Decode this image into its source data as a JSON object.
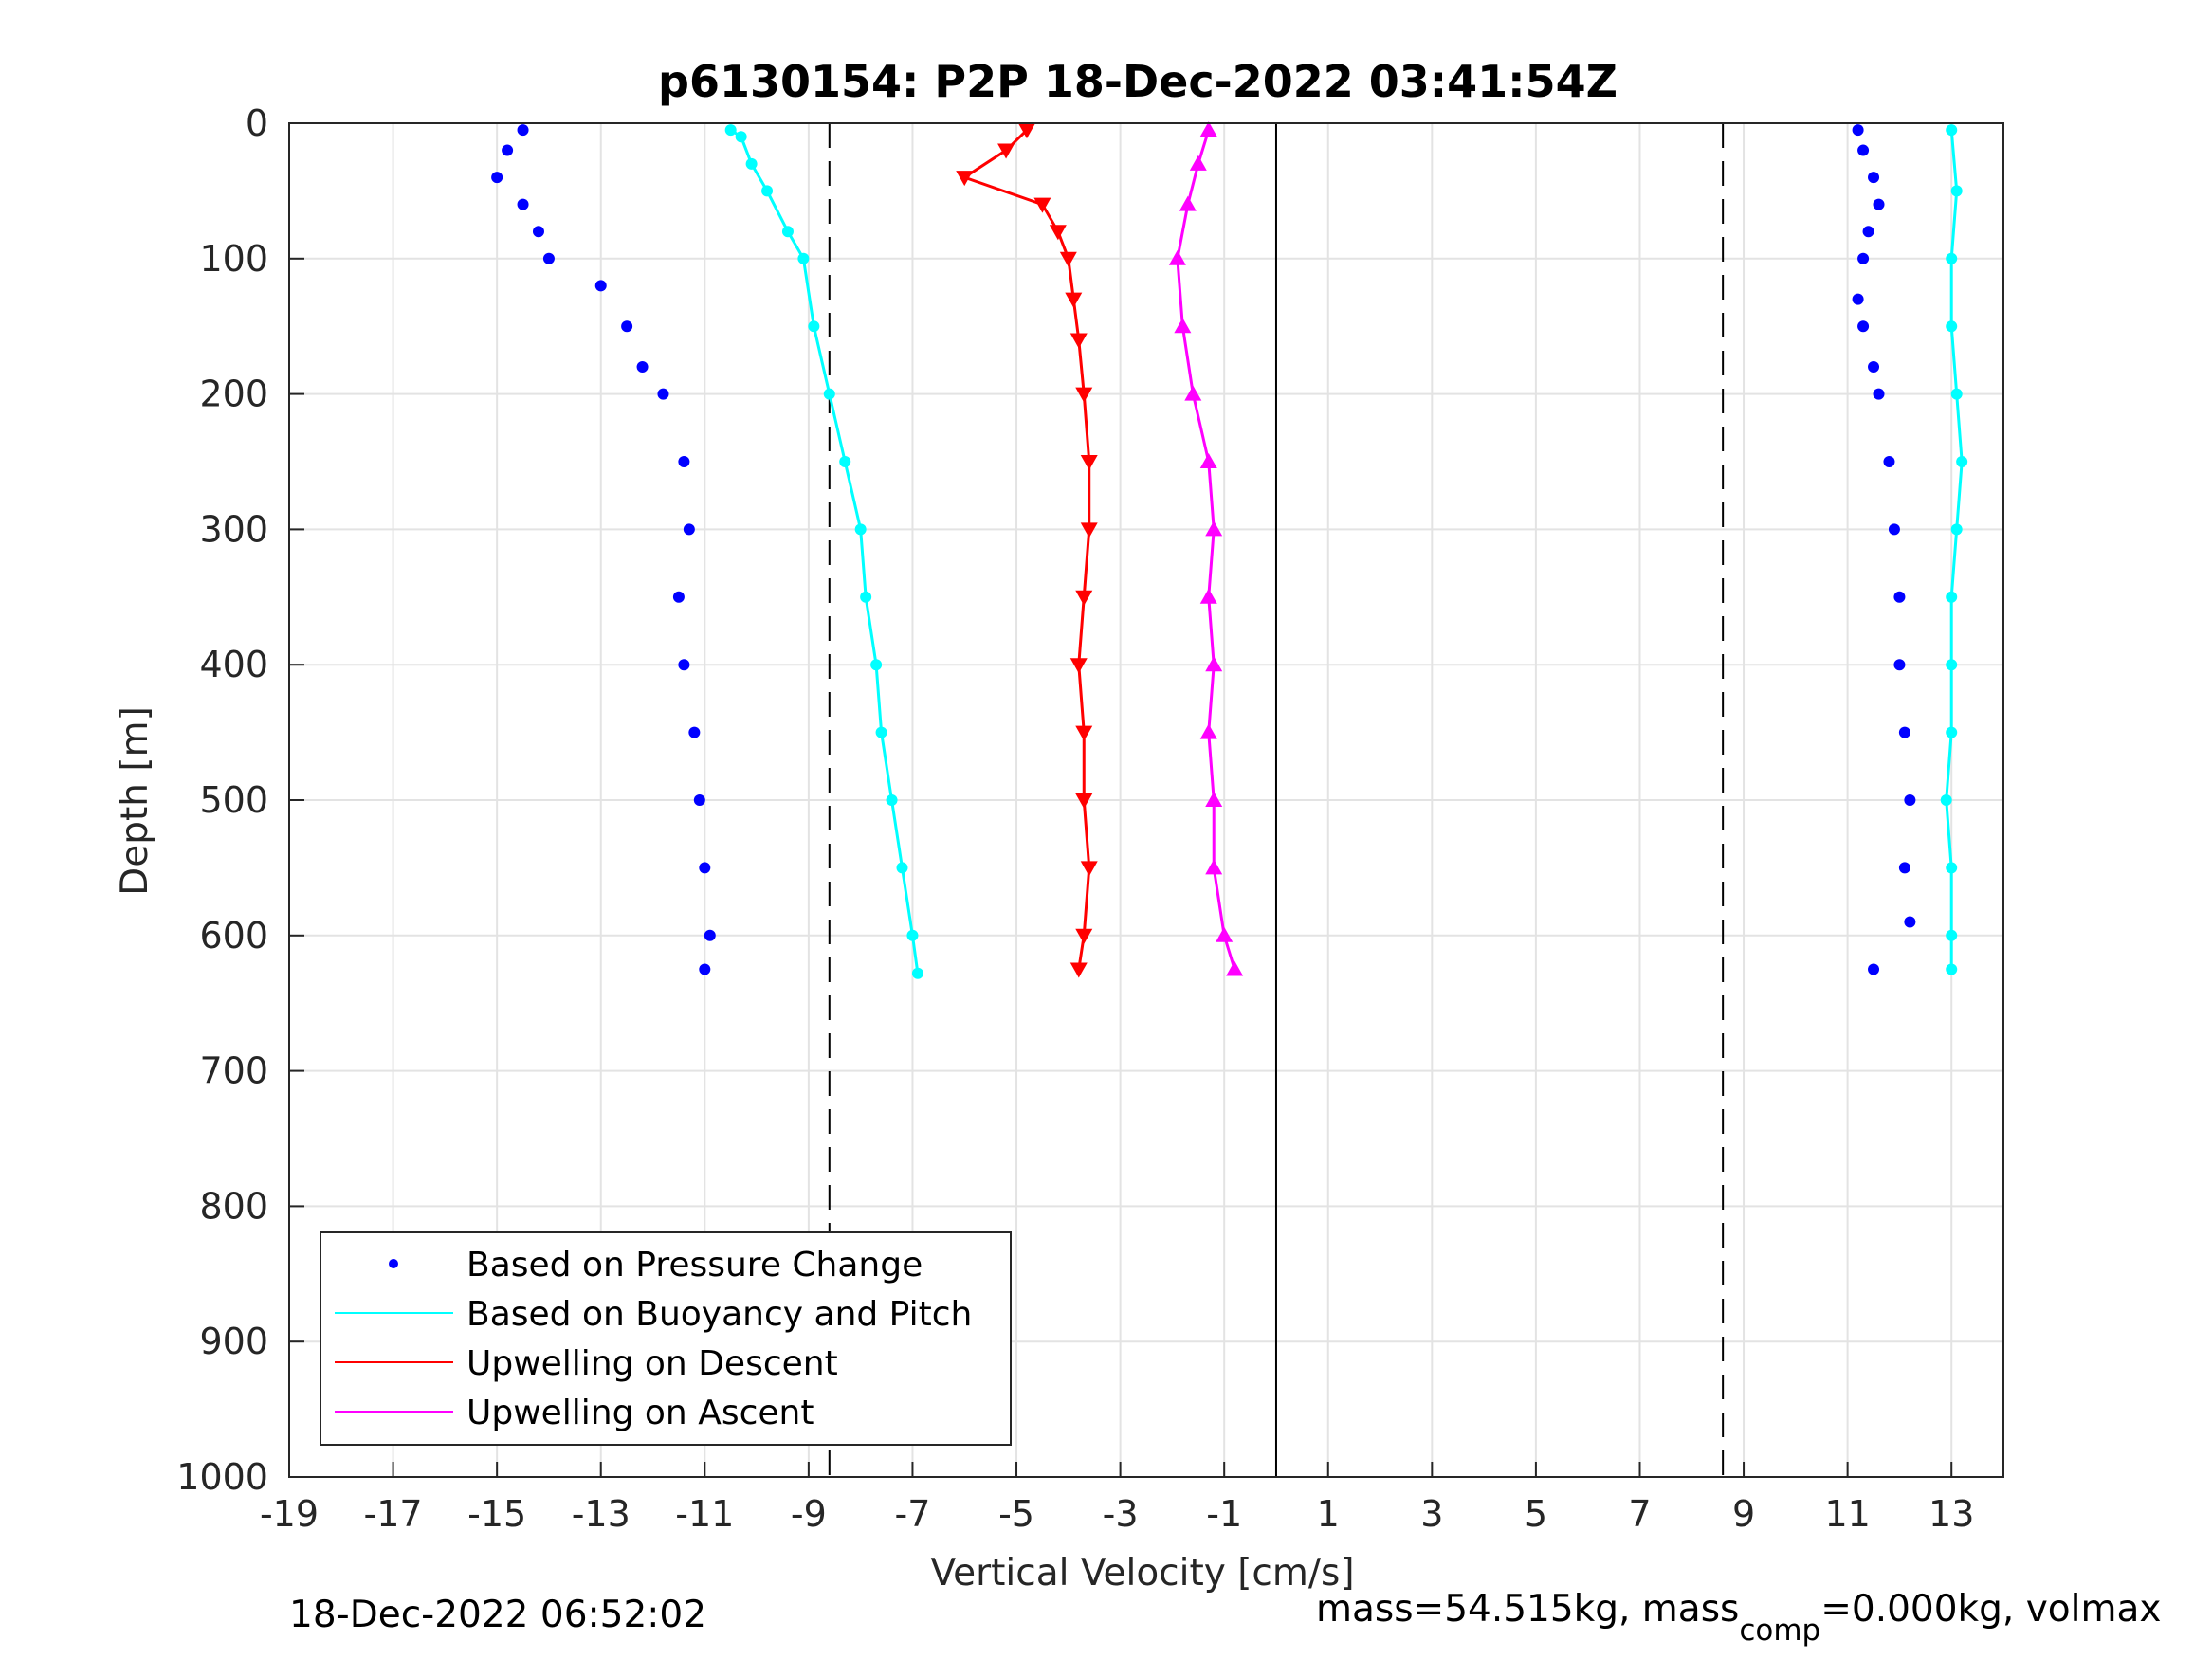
{
  "chart_data": {
    "type": "scatter",
    "title": "p6130154: P2P 18-Dec-2022 03:41:54Z",
    "xlabel": "Vertical Velocity [cm/s]",
    "ylabel": "Depth [m]",
    "xlim": [
      -19,
      14
    ],
    "ylim": [
      0,
      1000
    ],
    "y_reversed": true,
    "grid": true,
    "x_ticks": [
      "-19",
      "-17",
      "-15",
      "-13",
      "-11",
      "-9",
      "-7",
      "-5",
      "-3",
      "-1",
      "1",
      "3",
      "5",
      "7",
      "9",
      "11",
      "13"
    ],
    "y_ticks": [
      "0",
      "100",
      "200",
      "300",
      "400",
      "500",
      "600",
      "700",
      "800",
      "900",
      "1000"
    ],
    "dashed_lines_x": [
      -8.6,
      8.6
    ],
    "solid_line_x": 0,
    "legend_position": "bottom-left",
    "legend": [
      {
        "label": "Based on Pressure Change",
        "color": "#0000ff",
        "style": "dot"
      },
      {
        "label": "Based on Buoyancy and Pitch",
        "color": "#00ffff",
        "style": "line"
      },
      {
        "label": "Upwelling on Descent",
        "color": "#ff0000",
        "style": "line"
      },
      {
        "label": "Upwelling on Ascent",
        "color": "#ff00ff",
        "style": "line"
      }
    ],
    "series": [
      {
        "name": "Based on Pressure Change",
        "color": "#0000ff",
        "segments": [
          {
            "depth": [
              5,
              20,
              40,
              60,
              80,
              100,
              120,
              150,
              180,
              200,
              250,
              300,
              350,
              400,
              450,
              500,
              550,
              600,
              625
            ],
            "velocity": [
              -14.5,
              -14.8,
              -15.0,
              -14.5,
              -14.2,
              -14.0,
              -13.0,
              -12.5,
              -12.2,
              -11.8,
              -11.4,
              -11.3,
              -11.5,
              -11.4,
              -11.2,
              -11.1,
              -11.0,
              -10.9,
              -11.0
            ]
          },
          {
            "depth": [
              5,
              20,
              40,
              60,
              80,
              100,
              130,
              150,
              180,
              200,
              250,
              300,
              350,
              400,
              450,
              500,
              550,
              590,
              625
            ],
            "velocity": [
              11.2,
              11.3,
              11.5,
              11.6,
              11.4,
              11.3,
              11.2,
              11.3,
              11.5,
              11.6,
              11.8,
              11.9,
              12.0,
              12.0,
              12.1,
              12.2,
              12.1,
              12.2,
              11.5
            ]
          }
        ]
      },
      {
        "name": "Based on Buoyancy and Pitch",
        "color": "#00ffff",
        "segments": [
          {
            "depth": [
              5,
              10,
              30,
              50,
              80,
              100,
              150,
              200,
              250,
              300,
              350,
              400,
              450,
              500,
              550,
              600,
              628
            ],
            "velocity": [
              -10.5,
              -10.3,
              -10.1,
              -9.8,
              -9.4,
              -9.1,
              -8.9,
              -8.6,
              -8.3,
              -8.0,
              -7.9,
              -7.7,
              -7.6,
              -7.4,
              -7.2,
              -7.0,
              -6.9
            ]
          },
          {
            "depth": [
              5,
              50,
              100,
              150,
              200,
              250,
              300,
              350,
              400,
              450,
              500,
              550,
              600,
              625
            ],
            "velocity": [
              13.0,
              13.1,
              13.0,
              13.0,
              13.1,
              13.2,
              13.1,
              13.0,
              13.0,
              13.0,
              12.9,
              13.0,
              13.0,
              13.0
            ]
          }
        ]
      },
      {
        "name": "Upwelling on Descent",
        "color": "#ff0000",
        "segments": [
          {
            "depth": [
              5,
              20,
              40,
              60,
              80,
              100,
              130,
              160,
              200,
              250,
              300,
              350,
              400,
              450,
              500,
              550,
              600,
              625
            ],
            "velocity": [
              -4.8,
              -5.2,
              -6.0,
              -4.5,
              -4.2,
              -4.0,
              -3.9,
              -3.8,
              -3.7,
              -3.6,
              -3.6,
              -3.7,
              -3.8,
              -3.7,
              -3.7,
              -3.6,
              -3.7,
              -3.8
            ]
          }
        ]
      },
      {
        "name": "Upwelling on Ascent",
        "color": "#ff00ff",
        "segments": [
          {
            "depth": [
              5,
              30,
              60,
              100,
              150,
              200,
              250,
              300,
              350,
              400,
              450,
              500,
              550,
              600,
              625
            ],
            "velocity": [
              -1.3,
              -1.5,
              -1.7,
              -1.9,
              -1.8,
              -1.6,
              -1.3,
              -1.2,
              -1.3,
              -1.2,
              -1.3,
              -1.2,
              -1.2,
              -1.0,
              -0.8
            ]
          }
        ]
      }
    ],
    "footer_left": "18-Dec-2022 06:52:02",
    "footer_right_prefix": "mass=54.515kg, mass",
    "footer_right_sub": "comp",
    "footer_right_suffix": "=0.000kg, volmax"
  }
}
